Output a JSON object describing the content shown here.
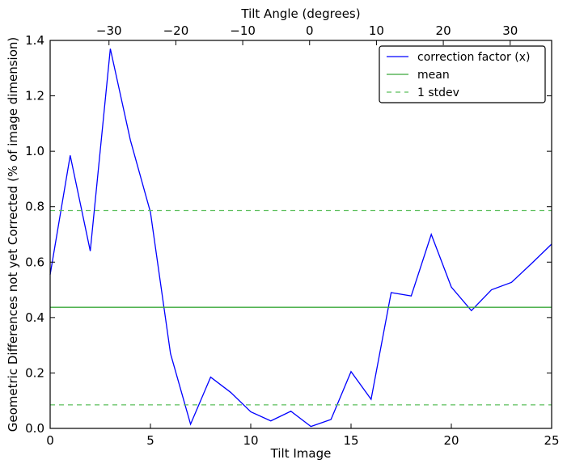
{
  "chart_data": {
    "type": "line",
    "title": "",
    "xlabel": "Tilt Image",
    "ylabel": "Geometric Differences not yet Corrected (% of image dimension)",
    "top_xlabel": "Tilt Angle (degrees)",
    "xlim": [
      0,
      25
    ],
    "ylim": [
      0,
      1.4
    ],
    "top_xlim": [
      -38.8,
      36.2
    ],
    "x_ticks": [
      0,
      5,
      10,
      15,
      20,
      25
    ],
    "x_tick_labels": [
      "0",
      "5",
      "10",
      "15",
      "20",
      "25"
    ],
    "y_ticks": [
      0,
      0.2,
      0.4,
      0.6,
      0.8,
      1.0,
      1.2,
      1.4
    ],
    "y_tick_labels": [
      "0.0",
      "0.2",
      "0.4",
      "0.6",
      "0.8",
      "1.0",
      "1.2",
      "1.4"
    ],
    "top_ticks": [
      -30,
      -20,
      -10,
      0,
      10,
      20,
      30
    ],
    "top_tick_labels": [
      "−30",
      "−20",
      "−10",
      "0",
      "10",
      "20",
      "30"
    ],
    "grid": false,
    "legend_position": "top-right",
    "series": [
      {
        "name": "correction factor (x)",
        "color": "#0000ff",
        "style": "solid",
        "x": [
          0,
          1,
          2,
          3,
          4,
          5,
          6,
          7,
          8,
          9,
          10,
          11,
          12,
          13,
          14,
          15,
          16,
          17,
          18,
          19,
          20,
          21,
          22,
          23,
          24,
          25
        ],
        "y": [
          0.555,
          0.985,
          0.64,
          1.37,
          1.04,
          0.78,
          0.27,
          0.015,
          0.185,
          0.13,
          0.06,
          0.027,
          0.062,
          0.007,
          0.032,
          0.205,
          0.105,
          0.49,
          0.478,
          0.7,
          0.51,
          0.425,
          0.5,
          0.527,
          0.595,
          0.665
        ]
      },
      {
        "name": "mean",
        "color": "#3aa83a",
        "style": "solid",
        "x": [
          0,
          25
        ],
        "y": [
          0.437,
          0.437
        ]
      },
      {
        "name": "1 stdev",
        "color": "#5cbf5c",
        "style": "dashed",
        "x": [
          0,
          25
        ],
        "y": [
          0.786,
          0.786
        ]
      },
      {
        "name": "",
        "color": "#5cbf5c",
        "style": "dashed",
        "x": [
          0,
          25
        ],
        "y": [
          0.085,
          0.085
        ]
      }
    ]
  }
}
